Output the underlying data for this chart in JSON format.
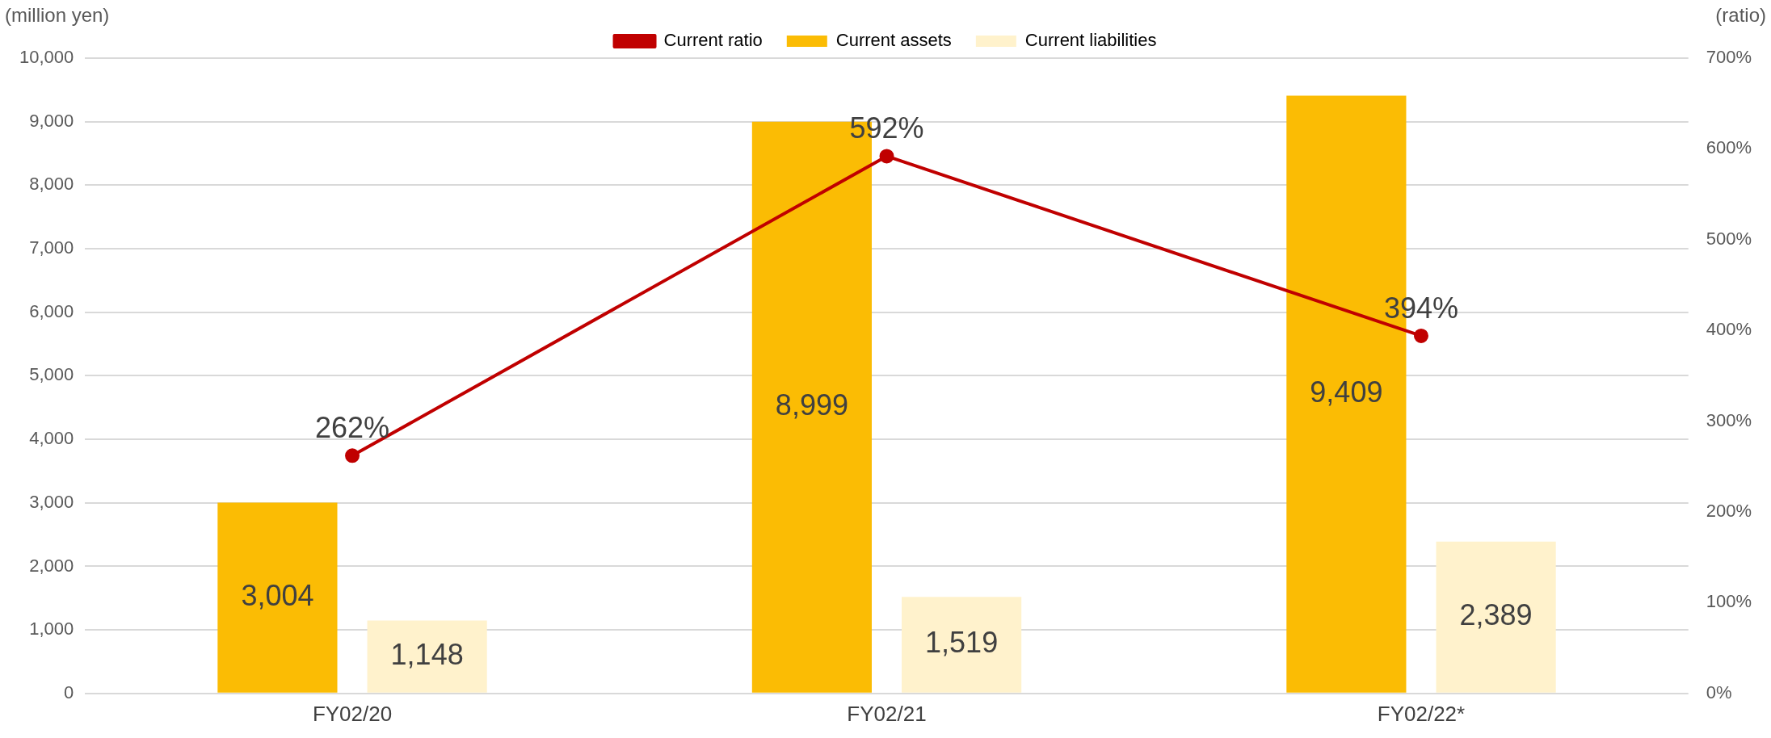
{
  "chart_data": {
    "type": "bar",
    "ylabel": "(million yen)",
    "y2label": "(ratio)",
    "categories": [
      "FY02/20",
      "FY02/21",
      "FY02/22*"
    ],
    "series": [
      {
        "name": "Current assets",
        "color": "#fbbc04",
        "values": [
          3004,
          8999,
          9409
        ]
      },
      {
        "name": "Current liabilities",
        "color": "#fff2cc",
        "values": [
          1148,
          1519,
          2389
        ]
      },
      {
        "name": "Current ratio",
        "type": "line",
        "axis": "y2",
        "color": "#c00000",
        "values": [
          262,
          592,
          394
        ],
        "marker": "circle"
      }
    ],
    "ylim": [
      0,
      10000
    ],
    "yticks": [
      {
        "value": 0,
        "label": "0"
      },
      {
        "value": 1000,
        "label": "1,000"
      },
      {
        "value": 2000,
        "label": "2,000"
      },
      {
        "value": 3000,
        "label": "3,000"
      },
      {
        "value": 4000,
        "label": "4,000"
      },
      {
        "value": 5000,
        "label": "5,000"
      },
      {
        "value": 6000,
        "label": "6,000"
      },
      {
        "value": 7000,
        "label": "7,000"
      },
      {
        "value": 8000,
        "label": "8,000"
      },
      {
        "value": 9000,
        "label": "9,000"
      },
      {
        "value": 10000,
        "label": "10,000"
      }
    ],
    "y2lim": [
      0,
      700
    ],
    "y2ticks": [
      {
        "value": 0,
        "label": "0%"
      },
      {
        "value": 100,
        "label": "100%"
      },
      {
        "value": 200,
        "label": "200%"
      },
      {
        "value": 300,
        "label": "300%"
      },
      {
        "value": 400,
        "label": "400%"
      },
      {
        "value": 500,
        "label": "500%"
      },
      {
        "value": 600,
        "label": "600%"
      },
      {
        "value": 700,
        "label": "700%"
      }
    ],
    "value_labels": [
      [
        "3,004",
        "8,999",
        "9,409"
      ],
      [
        "1,148",
        "1,519",
        "2,389"
      ],
      [
        "262%",
        "592%",
        "394%"
      ]
    ],
    "grid": "y",
    "legend": "top"
  }
}
